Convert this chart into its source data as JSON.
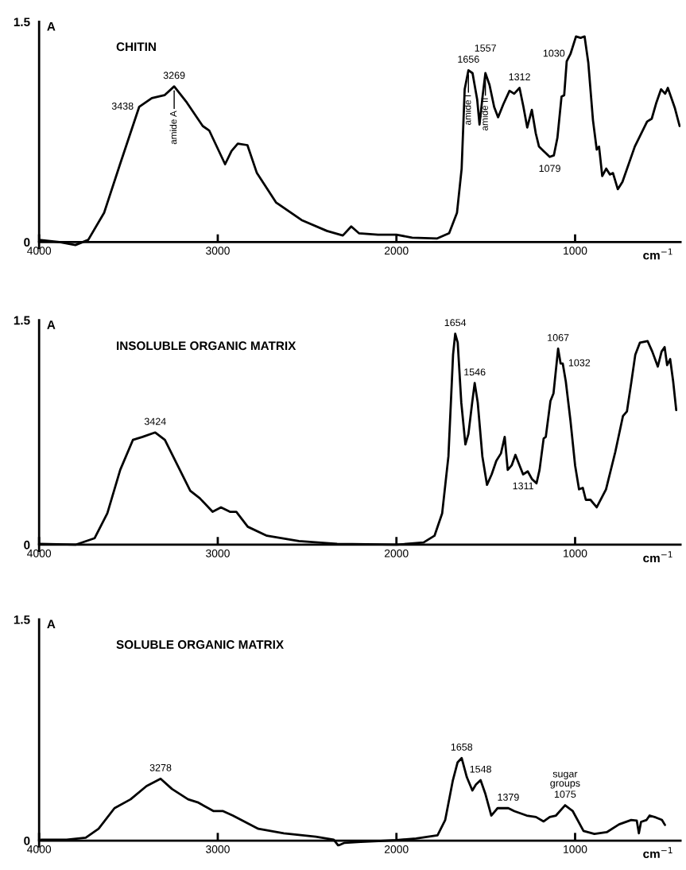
{
  "chart_data": [
    {
      "type": "line",
      "title": "CHITIN",
      "xlabel": "cm$^{−1}$",
      "ylabel": "A",
      "color": "#000000",
      "x": [
        4000,
        3886,
        3797,
        3725,
        3636,
        3547,
        3440,
        3369,
        3298,
        3244,
        3173,
        3084,
        3048,
        2959,
        2923,
        2888,
        2834,
        2781,
        2674,
        2531,
        2389,
        2300,
        2253,
        2210,
        2103,
        2000,
        1912,
        1774,
        1705,
        1661,
        1635,
        1618,
        1597,
        1574,
        1548,
        1535,
        1517,
        1502,
        1479,
        1453,
        1431,
        1401,
        1367,
        1341,
        1311,
        1289,
        1268,
        1242,
        1220,
        1202,
        1176,
        1142,
        1119,
        1099,
        1076,
        1061,
        1047,
        1026,
        995,
        969,
        947,
        926,
        900,
        879,
        866,
        848,
        826,
        805,
        788,
        761,
        735,
        666,
        597,
        571,
        545,
        519,
        496,
        481,
        458,
        441,
        415
      ],
      "values": [
        0.015,
        0.0,
        -0.02,
        0.015,
        0.2,
        0.53,
        0.92,
        0.98,
        1.0,
        1.06,
        0.95,
        0.79,
        0.76,
        0.53,
        0.62,
        0.67,
        0.66,
        0.47,
        0.27,
        0.15,
        0.076,
        0.045,
        0.106,
        0.06,
        0.05,
        0.05,
        0.03,
        0.024,
        0.06,
        0.2,
        0.5,
        1.04,
        1.17,
        1.15,
        0.97,
        0.8,
        1.0,
        1.15,
        1.07,
        0.92,
        0.85,
        0.94,
        1.03,
        1.01,
        1.05,
        0.92,
        0.78,
        0.9,
        0.74,
        0.65,
        0.62,
        0.58,
        0.59,
        0.71,
        0.99,
        1.0,
        1.23,
        1.28,
        1.4,
        1.39,
        1.4,
        1.22,
        0.83,
        0.63,
        0.65,
        0.45,
        0.5,
        0.46,
        0.47,
        0.36,
        0.41,
        0.65,
        0.82,
        0.84,
        0.95,
        1.04,
        1.01,
        1.05,
        0.97,
        0.91,
        0.79
      ],
      "xlim": [
        4000,
        410
      ],
      "ylim": [
        -0.04,
        1.5
      ],
      "xticks": [
        4000,
        3000,
        2000,
        1000
      ],
      "yticks": [
        0,
        1.5
      ],
      "annotations": [
        {
          "text": "3438",
          "x": 3440,
          "y": 0.92
        },
        {
          "text": "3269",
          "x": 3244,
          "y": 1.06
        },
        {
          "text": "amide A",
          "x": 3244,
          "y": 1.06
        },
        {
          "text": "1656",
          "x": 1597,
          "y": 1.17
        },
        {
          "text": "amide I",
          "x": 1597,
          "y": 1.17
        },
        {
          "text": "1557",
          "x": 1502,
          "y": 1.15
        },
        {
          "text": "amide II",
          "x": 1502,
          "y": 1.15
        },
        {
          "text": "1312",
          "x": 1311,
          "y": 1.05
        },
        {
          "text": "1030",
          "x": 1026,
          "y": 1.28
        },
        {
          "text": "1079",
          "x": 1142,
          "y": 0.58
        }
      ]
    },
    {
      "type": "line",
      "title": "INSOLUBLE ORGANIC MATRIX",
      "xlabel": "cm$^{−1}$",
      "ylabel": "A",
      "color": "#000000",
      "x": [
        4000,
        3796,
        3689,
        3618,
        3546,
        3475,
        3421,
        3350,
        3296,
        3225,
        3154,
        3100,
        3029,
        2982,
        2932,
        2896,
        2832,
        2725,
        2546,
        2332,
        2000,
        1848,
        1787,
        1744,
        1709,
        1683,
        1671,
        1657,
        1637,
        1614,
        1597,
        1576,
        1562,
        1545,
        1519,
        1493,
        1467,
        1441,
        1415,
        1394,
        1377,
        1355,
        1334,
        1311,
        1291,
        1265,
        1242,
        1216,
        1199,
        1176,
        1164,
        1138,
        1121,
        1095,
        1081,
        1069,
        1052,
        1026,
        1000,
        978,
        957,
        940,
        914,
        879,
        827,
        775,
        732,
        710,
        686,
        663,
        637,
        594,
        568,
        537,
        516,
        499,
        485,
        468,
        451,
        434
      ],
      "values": [
        0.006,
        0.0,
        0.044,
        0.21,
        0.5,
        0.7,
        0.72,
        0.75,
        0.7,
        0.53,
        0.36,
        0.31,
        0.22,
        0.25,
        0.22,
        0.22,
        0.12,
        0.06,
        0.024,
        0.006,
        0.0,
        0.015,
        0.06,
        0.21,
        0.59,
        1.27,
        1.41,
        1.35,
        0.95,
        0.67,
        0.74,
        0.95,
        1.08,
        0.95,
        0.59,
        0.4,
        0.47,
        0.56,
        0.61,
        0.72,
        0.5,
        0.53,
        0.6,
        0.53,
        0.47,
        0.49,
        0.44,
        0.41,
        0.5,
        0.71,
        0.72,
        0.96,
        1.01,
        1.31,
        1.21,
        1.21,
        1.09,
        0.83,
        0.53,
        0.37,
        0.38,
        0.3,
        0.3,
        0.25,
        0.37,
        0.62,
        0.86,
        0.89,
        1.08,
        1.27,
        1.35,
        1.36,
        1.29,
        1.19,
        1.29,
        1.32,
        1.2,
        1.24,
        1.09,
        0.9
      ],
      "xlim": [
        4000,
        410
      ],
      "ylim": [
        -0.04,
        1.5
      ],
      "xticks": [
        4000,
        3000,
        2000,
        1000
      ],
      "yticks": [
        0,
        1.5
      ],
      "annotations": [
        {
          "text": "3424",
          "x": 3350,
          "y": 0.75
        },
        {
          "text": "1654",
          "x": 1671,
          "y": 1.41
        },
        {
          "text": "1546",
          "x": 1562,
          "y": 1.08
        },
        {
          "text": "1311",
          "x": 1291,
          "y": 0.47
        },
        {
          "text": "1067",
          "x": 1095,
          "y": 1.31
        },
        {
          "text": "1032",
          "x": 1069,
          "y": 1.21
        }
      ]
    },
    {
      "type": "line",
      "title": "SOLUBLE ORGANIC MATRIX",
      "xlabel": "cm$^{−1}$",
      "ylabel": "A",
      "color": "#000000",
      "x": [
        3989,
        3846,
        3739,
        3667,
        3578,
        3488,
        3399,
        3320,
        3256,
        3166,
        3113,
        3023,
        2970,
        2916,
        2773,
        2630,
        2451,
        2351,
        2326,
        2290,
        2200,
        2000,
        1890,
        1770,
        1727,
        1684,
        1658,
        1635,
        1606,
        1575,
        1555,
        1529,
        1503,
        1469,
        1434,
        1374,
        1340,
        1271,
        1219,
        1176,
        1142,
        1107,
        1056,
        1013,
        953,
        892,
        823,
        754,
        686,
        655,
        643,
        631,
        600,
        583,
        548,
        514,
        497
      ],
      "values": [
        0.006,
        0.006,
        0.02,
        0.08,
        0.22,
        0.28,
        0.37,
        0.42,
        0.35,
        0.28,
        0.26,
        0.2,
        0.2,
        0.17,
        0.08,
        0.05,
        0.027,
        0.006,
        -0.033,
        -0.015,
        -0.009,
        0.003,
        0.015,
        0.036,
        0.14,
        0.41,
        0.53,
        0.56,
        0.43,
        0.34,
        0.38,
        0.41,
        0.32,
        0.17,
        0.22,
        0.22,
        0.2,
        0.17,
        0.16,
        0.13,
        0.16,
        0.17,
        0.24,
        0.2,
        0.066,
        0.045,
        0.057,
        0.11,
        0.14,
        0.136,
        0.05,
        0.127,
        0.14,
        0.17,
        0.157,
        0.14,
        0.106
      ],
      "xlim": [
        4000,
        410
      ],
      "ylim": [
        -0.04,
        1.5
      ],
      "xticks": [
        4000,
        3000,
        2000,
        1000
      ],
      "yticks": [
        0,
        1.5
      ],
      "annotations": [
        {
          "text": "3278",
          "x": 3320,
          "y": 0.42
        },
        {
          "text": "1658",
          "x": 1635,
          "y": 0.56
        },
        {
          "text": "1548",
          "x": 1529,
          "y": 0.41
        },
        {
          "text": "1379",
          "x": 1374,
          "y": 0.22
        },
        {
          "text": "1075",
          "x": 1056,
          "y": 0.24
        },
        {
          "text": "sugar\ngroups",
          "x": 1056,
          "y": 0.24
        }
      ]
    }
  ]
}
